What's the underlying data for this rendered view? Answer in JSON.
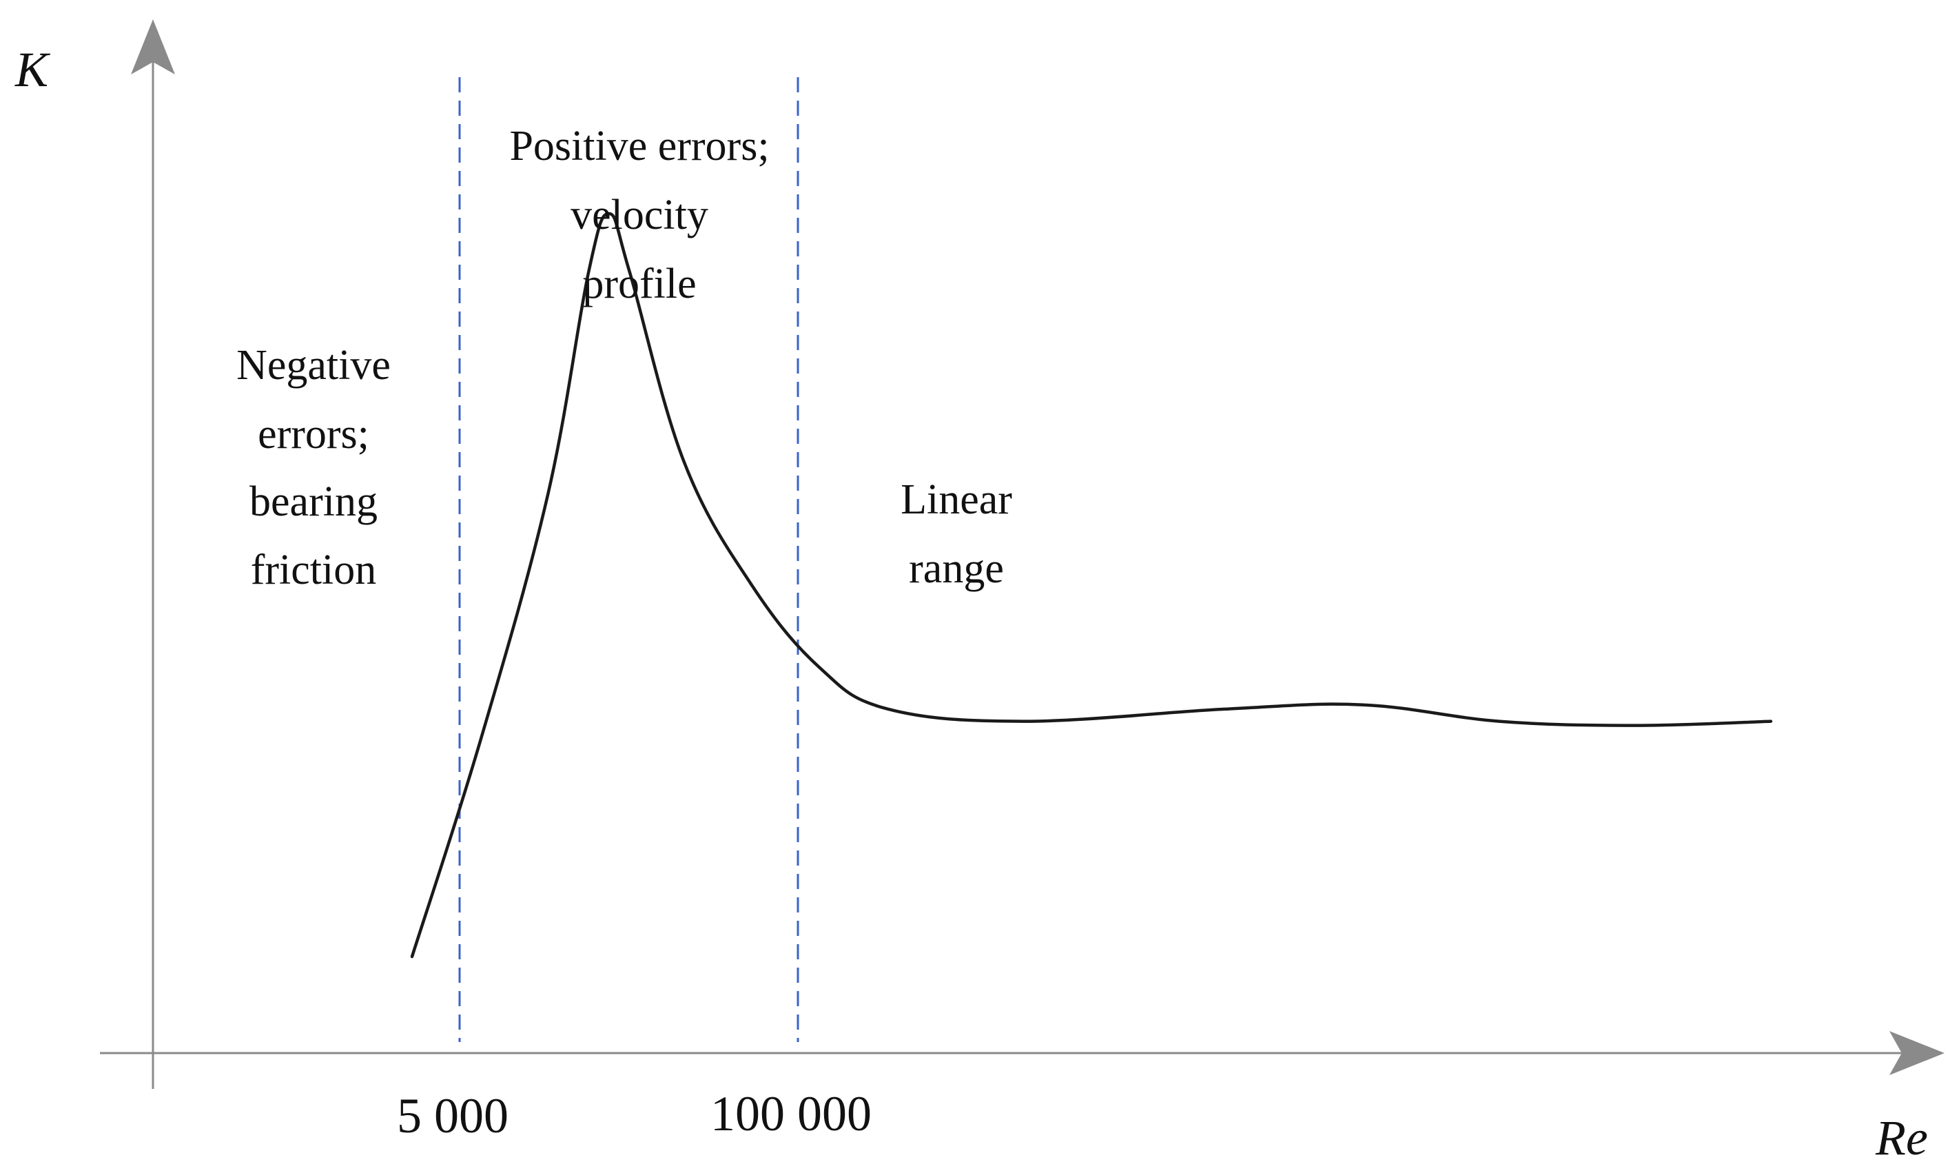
{
  "chart_data": {
    "type": "line",
    "title": "",
    "xlabel": "Re",
    "ylabel": "K",
    "x_ticks": [
      {
        "value": 5000,
        "label": "5 000"
      },
      {
        "value": 100000,
        "label": "100 000"
      }
    ],
    "boundaries": [
      5000,
      100000
    ],
    "regions": [
      {
        "name": "negative",
        "lines": [
          "Negative",
          "errors;",
          "bearing",
          "friction"
        ]
      },
      {
        "name": "positive",
        "lines": [
          "Positive errors;",
          "velocity",
          "profile"
        ]
      },
      {
        "name": "linear",
        "lines": [
          "Linear",
          "range"
        ]
      }
    ],
    "curve_description": "Qualitative calibration curve: K rises steeply near Re = 5 000, peaks shortly after, decays toward Re = 100 000, then stays nearly flat (linear range).",
    "series": [
      {
        "name": "K",
        "points": [
          [
            0.0,
            0.1
          ],
          [
            0.05,
            0.36
          ],
          [
            0.1,
            0.66
          ],
          [
            0.13,
            0.93
          ],
          [
            0.145,
            1.0
          ],
          [
            0.16,
            0.93
          ],
          [
            0.2,
            0.7
          ],
          [
            0.25,
            0.55
          ],
          [
            0.3,
            0.45
          ],
          [
            0.35,
            0.4
          ],
          [
            0.45,
            0.385
          ],
          [
            0.6,
            0.4
          ],
          [
            0.7,
            0.405
          ],
          [
            0.8,
            0.385
          ],
          [
            0.9,
            0.38
          ],
          [
            1.0,
            0.385
          ]
        ]
      }
    ],
    "grid": false,
    "legend": "none",
    "colors": {
      "curve": "#1a1a1a",
      "axes": "#8a8a8a",
      "boundary": "#3a63c8"
    }
  }
}
